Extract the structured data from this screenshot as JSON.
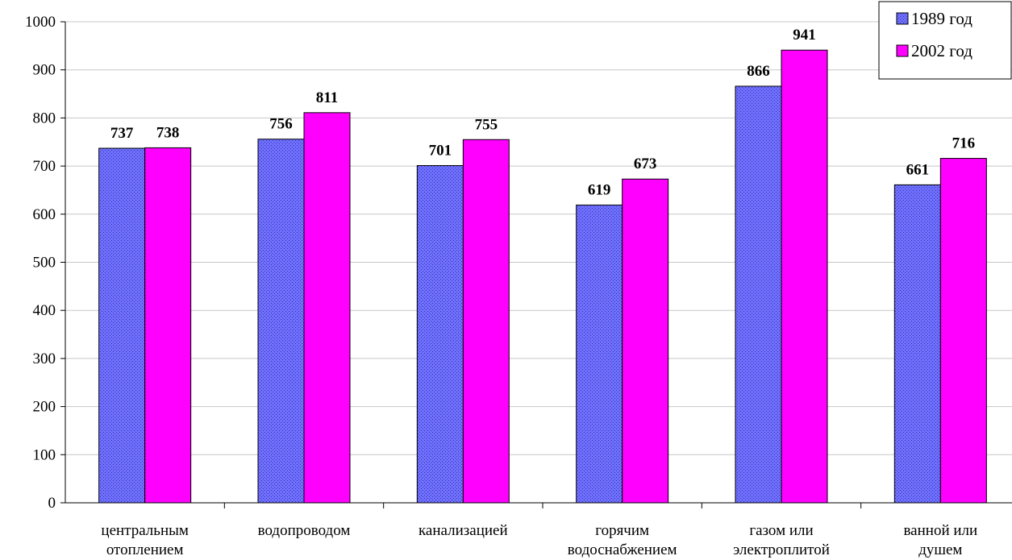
{
  "chart_data": {
    "type": "bar",
    "categories": [
      [
        "центральным",
        "отоплением"
      ],
      [
        "водопроводом"
      ],
      [
        "канализацией"
      ],
      [
        "горячим",
        "водоснабжением"
      ],
      [
        "газом или",
        "электроплитой"
      ],
      [
        "ванной или",
        "душем"
      ]
    ],
    "series": [
      {
        "name": "1989 год",
        "values": [
          737,
          756,
          701,
          619,
          866,
          661
        ],
        "color": "#6666ff"
      },
      {
        "name": "2002 год",
        "values": [
          738,
          811,
          755,
          673,
          941,
          716
        ],
        "color": "#ff00ff"
      }
    ],
    "ylim": [
      0,
      1000
    ],
    "yticks": [
      0,
      100,
      200,
      300,
      400,
      500,
      600,
      700,
      800,
      900,
      1000
    ],
    "grid": true,
    "legend_position": "top-right",
    "data_labels": true
  }
}
